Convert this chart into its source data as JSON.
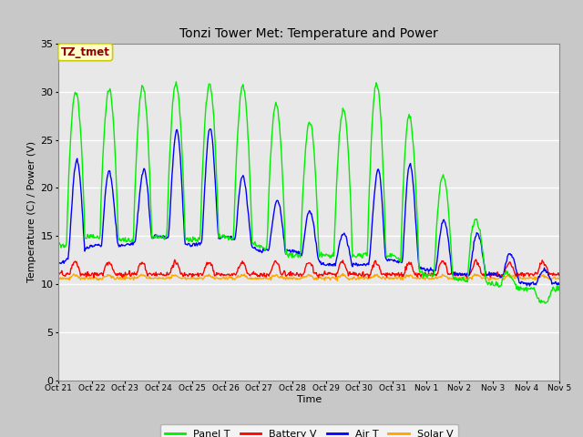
{
  "title": "Tonzi Tower Met: Temperature and Power",
  "xlabel": "Time",
  "ylabel": "Temperature (C) / Power (V)",
  "ylim": [
    0,
    35
  ],
  "yticks": [
    0,
    5,
    10,
    15,
    20,
    25,
    30,
    35
  ],
  "xlim": [
    0,
    15
  ],
  "xtick_positions": [
    0,
    1,
    2,
    3,
    4,
    5,
    6,
    7,
    8,
    9,
    10,
    11,
    12,
    13,
    14,
    15
  ],
  "xtick_labels": [
    "Oct 21",
    "Oct 22",
    "Oct 23",
    "Oct 24",
    "Oct 25",
    "Oct 26",
    "Oct 27",
    "Oct 28",
    "Oct 29",
    "Oct 30",
    "Oct 31",
    "Nov 1",
    "Nov 2",
    "Nov 3",
    "Nov 4",
    "Nov 5"
  ],
  "annotation_text": "TZ_tmet",
  "annotation_box_facecolor": "#ffffcc",
  "annotation_text_color": "#8b0000",
  "annotation_edge_color": "#cccc00",
  "colors": {
    "panel_t": "#00ee00",
    "battery_v": "#ff0000",
    "air_t": "#0000ff",
    "solar_v": "#ffa500"
  },
  "legend_labels": [
    "Panel T",
    "Battery V",
    "Air T",
    "Solar V"
  ],
  "figure_bg": "#c8c8c8",
  "axes_bg": "#e8e8e8",
  "legend_bg": "#ffffff",
  "grid_color": "#ffffff",
  "grid_linewidth": 1.0,
  "line_linewidth": 1.0,
  "title_fontsize": 10,
  "label_fontsize": 8,
  "tick_fontsize": 8,
  "legend_fontsize": 8
}
